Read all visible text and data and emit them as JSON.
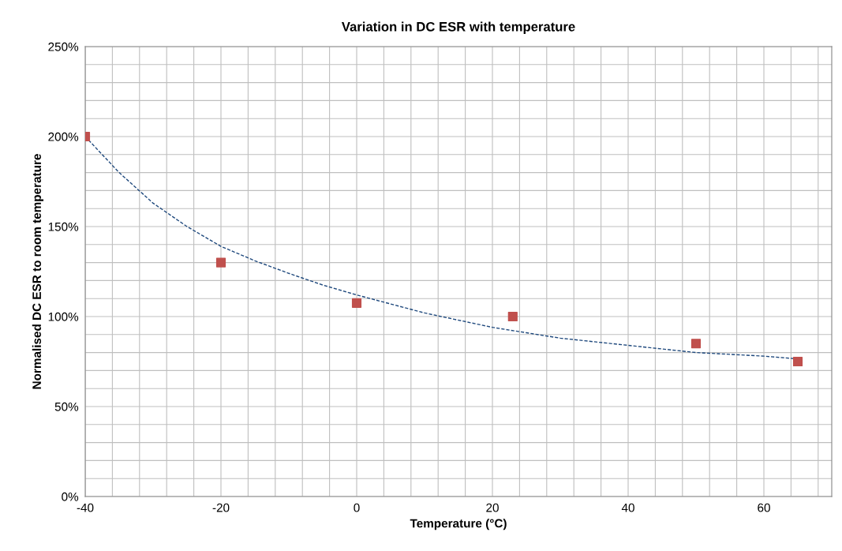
{
  "chart_data": {
    "type": "scatter",
    "title": "Variation in DC ESR with temperature",
    "xlabel": "Temperature (°C)",
    "ylabel": "Normalised DC ESR to room temperature",
    "series": [
      {
        "color": "#c0504d",
        "marker": "square",
        "x": [
          -40,
          -20,
          0,
          23,
          50,
          65
        ],
        "values": [
          200,
          130,
          107.5,
          100,
          85,
          75
        ]
      },
      {
        "type": "line",
        "color": "#1f497d",
        "marker": "none",
        "line_style": "dashed",
        "x": [
          -40,
          -35,
          -30,
          -25,
          -20,
          -15,
          -10,
          -5,
          0,
          5,
          10,
          15,
          20,
          25,
          30,
          35,
          40,
          45,
          50,
          55,
          60,
          65
        ],
        "values": [
          200,
          180,
          163,
          150,
          139,
          131,
          124,
          117.5,
          112,
          107,
          102,
          98,
          94,
          91,
          88,
          86,
          84,
          82,
          80,
          79,
          78,
          76.5
        ]
      }
    ],
    "xlim": [
      -40,
      70
    ],
    "xticks": [
      -40,
      {
        "value": -36,
        "label": null
      },
      {
        "value": -32,
        "label": null
      },
      {
        "value": -28,
        "label": null
      },
      {
        "value": -24,
        "label": null
      },
      -20,
      {
        "value": -16,
        "label": null
      },
      {
        "value": -12,
        "label": null
      },
      {
        "value": -8,
        "label": null
      },
      {
        "value": -4,
        "label": null
      },
      0,
      {
        "value": 4,
        "label": null
      },
      {
        "value": 8,
        "label": null
      },
      {
        "value": 12,
        "label": null
      },
      {
        "value": 16,
        "label": null
      },
      20,
      {
        "value": 24,
        "label": null
      },
      {
        "value": 28,
        "label": null
      },
      {
        "value": 32,
        "label": null
      },
      {
        "value": 36,
        "label": null
      },
      40,
      {
        "value": 44,
        "label": null
      },
      {
        "value": 48,
        "label": null
      },
      {
        "value": 52,
        "label": null
      },
      {
        "value": 56,
        "label": null
      },
      60,
      {
        "value": 64,
        "label": null
      },
      {
        "value": 68,
        "label": null
      }
    ],
    "ylim": [
      0,
      250
    ],
    "yticks": [
      {
        "value": 0,
        "label": "0%"
      },
      {
        "value": 10,
        "label": null
      },
      {
        "value": 20,
        "label": null
      },
      {
        "value": 30,
        "label": null
      },
      {
        "value": 40,
        "label": null
      },
      {
        "value": 50,
        "label": "50%"
      },
      {
        "value": 60,
        "label": null
      },
      {
        "value": 70,
        "label": null
      },
      {
        "value": 80,
        "label": null
      },
      {
        "value": 90,
        "label": null
      },
      {
        "value": 100,
        "label": "100%"
      },
      {
        "value": 110,
        "label": null
      },
      {
        "value": 120,
        "label": null
      },
      {
        "value": 130,
        "label": null
      },
      {
        "value": 140,
        "label": null
      },
      {
        "value": 150,
        "label": "150%"
      },
      {
        "value": 160,
        "label": null
      },
      {
        "value": 170,
        "label": null
      },
      {
        "value": 180,
        "label": null
      },
      {
        "value": 190,
        "label": null
      },
      {
        "value": 200,
        "label": "200%"
      },
      {
        "value": 210,
        "label": null
      },
      {
        "value": 220,
        "label": null
      },
      {
        "value": 230,
        "label": null
      },
      {
        "value": 240,
        "label": null
      },
      {
        "value": 250,
        "label": "250%"
      }
    ],
    "grid": true,
    "legend": false
  }
}
